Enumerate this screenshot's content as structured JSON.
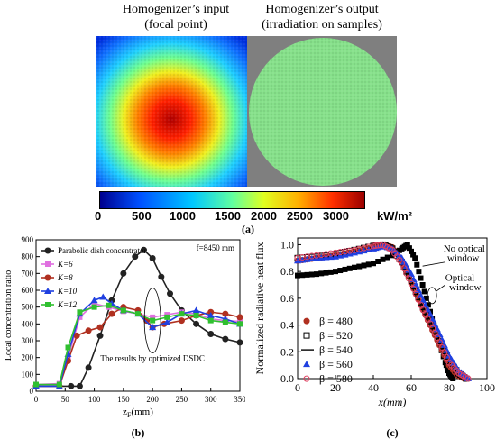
{
  "panel_a": {
    "input_title_line1": "Homogenizer’s input",
    "input_title_line2": "(focal point)",
    "output_title_line1": "Homogenizer’s output",
    "output_title_line2": "(irradiation on samples)",
    "colorbar": {
      "ticks": [
        "0",
        "500",
        "1000",
        "1500",
        "2000",
        "2500",
        "3000"
      ],
      "unit": "kW/m²",
      "colors": [
        "#00008f",
        "#0050ff",
        "#00c8ff",
        "#60ffa0",
        "#e0ff20",
        "#ffb000",
        "#ff3000",
        "#9a0000"
      ]
    },
    "label": "(a)"
  },
  "panel_b": {
    "label": "(b)",
    "annotation_f": "f=8450 mm",
    "annotation_results": "The results by optimized DSDC",
    "chart_data": {
      "type": "line",
      "xlabel": "zF(mm)",
      "ylabel": "Local concentration ratio",
      "xlim": [
        0,
        350
      ],
      "ylim": [
        0,
        900
      ],
      "xticks": [
        "0",
        "50",
        "100",
        "150",
        "200",
        "250",
        "300",
        "350"
      ],
      "yticks": [
        "0",
        "100",
        "200",
        "300",
        "400",
        "500",
        "600",
        "700",
        "800",
        "900"
      ],
      "legend_placement": "top-left",
      "series": [
        {
          "name": "Parabolic dish concentrator",
          "color": "#222222",
          "marker": "circle",
          "x": [
            0,
            40,
            60,
            75,
            90,
            110,
            130,
            150,
            170,
            185,
            200,
            215,
            230,
            250,
            275,
            300,
            325,
            350
          ],
          "y": [
            30,
            30,
            30,
            30,
            140,
            330,
            540,
            700,
            800,
            840,
            790,
            680,
            580,
            480,
            400,
            340,
            310,
            290
          ]
        },
        {
          "name": "K=6",
          "color": "#e070e0",
          "marker": "square",
          "x": [
            0,
            40,
            55,
            75,
            100,
            125,
            150,
            175,
            200,
            225,
            250,
            275,
            300,
            325,
            350
          ],
          "y": [
            40,
            45,
            200,
            440,
            520,
            500,
            475,
            460,
            440,
            455,
            470,
            460,
            430,
            420,
            415
          ]
        },
        {
          "name": "K=8",
          "color": "#b03020",
          "marker": "circle",
          "x": [
            0,
            40,
            55,
            70,
            90,
            110,
            130,
            150,
            175,
            190,
            200,
            220,
            250,
            275,
            300,
            325,
            350
          ],
          "y": [
            30,
            30,
            180,
            330,
            360,
            380,
            460,
            500,
            480,
            420,
            380,
            400,
            420,
            450,
            470,
            460,
            440
          ]
        },
        {
          "name": "K=10",
          "color": "#2040e0",
          "marker": "triangle",
          "x": [
            0,
            40,
            55,
            75,
            100,
            115,
            130,
            150,
            175,
            200,
            225,
            250,
            275,
            300,
            325,
            350
          ],
          "y": [
            30,
            30,
            220,
            460,
            540,
            560,
            520,
            480,
            460,
            380,
            410,
            460,
            480,
            450,
            430,
            400
          ]
        },
        {
          "name": "K=12",
          "color": "#30c030",
          "marker": "square",
          "x": [
            0,
            40,
            55,
            75,
            100,
            125,
            150,
            175,
            200,
            225,
            250,
            275,
            300,
            325,
            350
          ],
          "y": [
            40,
            40,
            260,
            470,
            500,
            510,
            480,
            460,
            420,
            440,
            460,
            450,
            420,
            410,
            400
          ]
        }
      ]
    }
  },
  "panel_c": {
    "label": "(c)",
    "annotation_no_window_1": "No optical",
    "annotation_no_window_2": "window",
    "annotation_window_1": "Optical",
    "annotation_window_2": "window",
    "chart_data": {
      "type": "line",
      "xlabel": "x(mm)",
      "ylabel": "Normalized radiative heat flux",
      "xlim": [
        0,
        100
      ],
      "ylim": [
        0,
        1.05
      ],
      "xticks": [
        "0",
        "20",
        "40",
        "60",
        "80",
        "100"
      ],
      "yticks": [
        "0.0",
        "0.2",
        "0.4",
        "0.6",
        "0.8",
        "1.0"
      ],
      "legend_placement": "bottom-left",
      "series": [
        {
          "name": "No optical window",
          "color": "#000000",
          "marker": "filled-square",
          "x": [
            0,
            10,
            20,
            30,
            40,
            50,
            55,
            58,
            62,
            66,
            70,
            74,
            78,
            80,
            82
          ],
          "y": [
            0.77,
            0.78,
            0.8,
            0.83,
            0.86,
            0.92,
            0.97,
            1.0,
            0.9,
            0.7,
            0.5,
            0.3,
            0.12,
            0.04,
            0.0
          ]
        },
        {
          "name": "β = 480",
          "color": "#b03020",
          "marker": "filled-circle",
          "x": [
            0,
            10,
            20,
            30,
            40,
            45,
            50,
            55,
            60,
            65,
            70,
            75,
            80,
            84,
            88
          ],
          "y": [
            0.88,
            0.9,
            0.92,
            0.95,
            0.98,
            1.0,
            0.98,
            0.88,
            0.72,
            0.55,
            0.4,
            0.25,
            0.1,
            0.03,
            0.0
          ]
        },
        {
          "name": "β = 520",
          "color": "#000000",
          "marker": "open-square",
          "x": [
            0,
            10,
            20,
            30,
            40,
            45,
            50,
            55,
            60,
            65,
            70,
            75,
            80,
            85,
            89
          ],
          "y": [
            0.9,
            0.91,
            0.93,
            0.96,
            0.99,
            1.0,
            0.97,
            0.87,
            0.73,
            0.57,
            0.43,
            0.28,
            0.13,
            0.04,
            0.0
          ]
        },
        {
          "name": "β = 540",
          "color": "#000000",
          "marker": "line",
          "x": [
            0,
            10,
            20,
            30,
            40,
            45,
            50,
            55,
            60,
            65,
            70,
            75,
            80,
            85,
            90
          ],
          "y": [
            0.89,
            0.9,
            0.92,
            0.95,
            0.98,
            1.0,
            0.97,
            0.88,
            0.74,
            0.58,
            0.44,
            0.29,
            0.14,
            0.05,
            0.0
          ]
        },
        {
          "name": "β = 560",
          "color": "#2040e0",
          "marker": "filled-triangle",
          "x": [
            0,
            10,
            20,
            30,
            40,
            45,
            50,
            55,
            60,
            65,
            70,
            75,
            80,
            85,
            90
          ],
          "y": [
            0.88,
            0.9,
            0.91,
            0.94,
            0.97,
            0.99,
            0.97,
            0.9,
            0.78,
            0.62,
            0.48,
            0.33,
            0.17,
            0.06,
            0.0
          ]
        },
        {
          "name": "β = 580",
          "color": "#e04060",
          "marker": "open-circle",
          "x": [
            0,
            10,
            20,
            30,
            40,
            45,
            50,
            55,
            60,
            65,
            70,
            75,
            80,
            85,
            90
          ],
          "y": [
            0.9,
            0.92,
            0.94,
            0.96,
            0.99,
            1.0,
            0.96,
            0.86,
            0.71,
            0.55,
            0.41,
            0.27,
            0.12,
            0.04,
            0.0
          ]
        }
      ]
    }
  }
}
